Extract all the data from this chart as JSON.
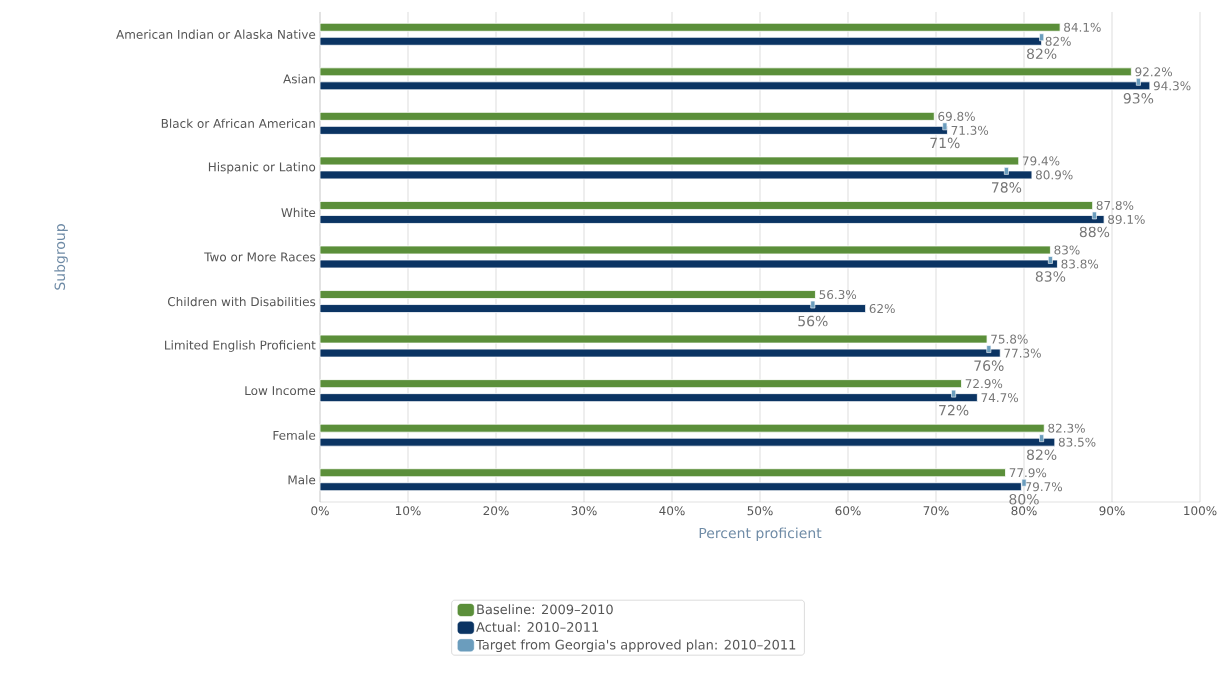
{
  "chart_data": {
    "type": "bar",
    "orientation": "horizontal",
    "ylabel": "Subgroup",
    "xlabel": "Percent proficient",
    "categories": [
      "American Indian or Alaska Native",
      "Asian",
      "Black or African American",
      "Hispanic or Latino",
      "White",
      "Two or More Races",
      "Children with Disabilities",
      "Limited English Proficient",
      "Low Income",
      "Female",
      "Male"
    ],
    "xlim": [
      0,
      100
    ],
    "xticks": [
      {
        "value": 0,
        "label": "0%"
      },
      {
        "value": 10,
        "label": "10%"
      },
      {
        "value": 20,
        "label": "20%"
      },
      {
        "value": 30,
        "label": "30%"
      },
      {
        "value": 40,
        "label": "40%"
      },
      {
        "value": 50,
        "label": "50%"
      },
      {
        "value": 60,
        "label": "60%"
      },
      {
        "value": 70,
        "label": "70%"
      },
      {
        "value": 80,
        "label": "80%"
      },
      {
        "value": 90,
        "label": "90%"
      },
      {
        "value": 100,
        "label": "100%"
      }
    ],
    "grid": "x",
    "legend": "bottom",
    "series": [
      {
        "name": "Baseline: 2009–2010",
        "color": "#5b8f3a",
        "values": [
          84.1,
          92.2,
          69.8,
          79.4,
          87.8,
          83,
          56.3,
          75.8,
          72.9,
          82.3,
          77.9
        ],
        "value_labels": [
          "84.1%",
          "92.2%",
          "69.8%",
          "79.4%",
          "87.8%",
          "83%",
          "56.3%",
          "75.8%",
          "72.9%",
          "82.3%",
          "77.9%"
        ]
      },
      {
        "name": "Actual: 2010–2011",
        "color": "#0b3463",
        "values": [
          82,
          94.3,
          71.3,
          80.9,
          89.1,
          83.8,
          62,
          77.3,
          74.7,
          83.5,
          79.7
        ],
        "value_labels": [
          "82%",
          "94.3%",
          "71.3%",
          "80.9%",
          "89.1%",
          "83.8%",
          "62%",
          "77.3%",
          "74.7%",
          "83.5%",
          "79.7%"
        ]
      },
      {
        "name": "Target from Georgia's approved plan: 2010–2011",
        "type": "scatter",
        "color": "#6b9dbd",
        "values": [
          82,
          93,
          71,
          78,
          88,
          83,
          56,
          76,
          72,
          82,
          80
        ],
        "value_labels": [
          "82%",
          "93%",
          "71%",
          "78%",
          "88%",
          "83%",
          "56%",
          "76%",
          "72%",
          "82%",
          "80%"
        ]
      }
    ]
  }
}
